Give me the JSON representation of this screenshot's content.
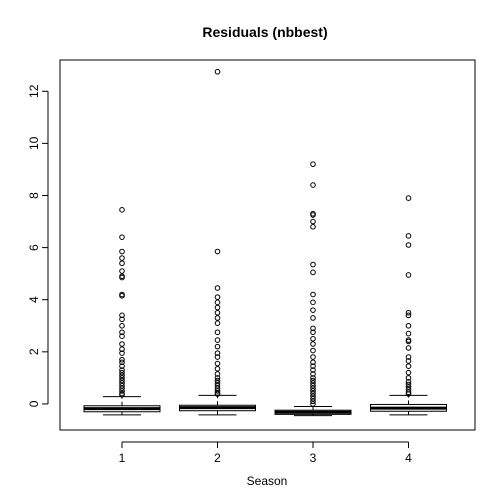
{
  "chart_data": {
    "type": "boxplot",
    "title": "Residuals (nbbest)",
    "xlabel": "Season",
    "ylabel": "",
    "categories": [
      "1",
      "2",
      "3",
      "4"
    ],
    "y_ticks": [
      0,
      2,
      4,
      6,
      8,
      10,
      12
    ],
    "ylim": [
      -1.0,
      13.2
    ],
    "grid": false,
    "boxes": [
      {
        "category": "1",
        "whisker_low": -0.42,
        "q1": -0.3,
        "median": -0.18,
        "q3": -0.07,
        "whisker_high": 0.28,
        "outliers": [
          7.45,
          6.4,
          5.85,
          5.6,
          5.4,
          5.1,
          4.9,
          4.85,
          4.2,
          4.15,
          3.4,
          3.25,
          3.0,
          2.75,
          2.6,
          2.3,
          2.1,
          1.95,
          1.7,
          1.6,
          1.45,
          1.3,
          1.2,
          1.1,
          1.0,
          0.9,
          0.8,
          0.7,
          0.6,
          0.5,
          0.4,
          0.35
        ]
      },
      {
        "category": "2",
        "whisker_low": -0.42,
        "q1": -0.26,
        "median": -0.14,
        "q3": -0.05,
        "whisker_high": 0.33,
        "outliers": [
          12.75,
          5.85,
          4.45,
          4.1,
          3.9,
          3.7,
          3.5,
          3.3,
          3.1,
          2.75,
          2.45,
          2.2,
          1.95,
          1.8,
          1.55,
          1.35,
          1.15,
          1.0,
          0.9,
          0.8,
          0.7,
          0.6,
          0.5,
          0.42,
          0.38
        ]
      },
      {
        "category": "3",
        "whisker_low": -0.45,
        "q1": -0.4,
        "median": -0.32,
        "q3": -0.24,
        "whisker_high": -0.1,
        "outliers": [
          9.2,
          8.4,
          7.3,
          7.25,
          7.0,
          6.8,
          5.35,
          5.05,
          4.2,
          3.9,
          3.6,
          3.3,
          2.9,
          2.75,
          2.5,
          2.3,
          2.05,
          1.8,
          1.6,
          1.45,
          1.3,
          1.15,
          1.0,
          0.9,
          0.8,
          0.7,
          0.6,
          0.5,
          0.4,
          0.3,
          0.2,
          0.1,
          0.0
        ]
      },
      {
        "category": "4",
        "whisker_low": -0.42,
        "q1": -0.28,
        "median": -0.16,
        "q3": -0.02,
        "whisker_high": 0.33,
        "outliers": [
          7.9,
          6.45,
          6.1,
          4.95,
          3.5,
          3.4,
          3.0,
          2.7,
          2.45,
          2.4,
          2.15,
          1.8,
          1.65,
          1.45,
          1.2,
          1.0,
          0.85,
          0.75,
          0.65,
          0.55,
          0.45,
          0.38
        ]
      }
    ]
  }
}
